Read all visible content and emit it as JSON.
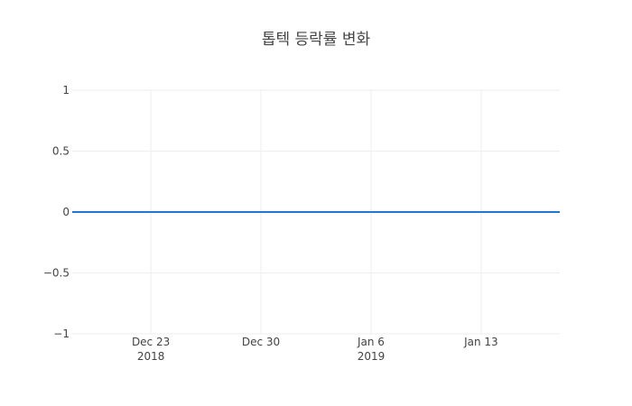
{
  "chart_data": {
    "type": "line",
    "title": "톱텍 등락률 변화",
    "xlabel": "",
    "ylabel": "",
    "x_range": [
      "2018-12-18",
      "2019-01-18"
    ],
    "ylim": [
      -1,
      1
    ],
    "grid": true,
    "legend": "none",
    "series": [
      {
        "color": "#1f77d3",
        "x": [
          "2018-12-18",
          "2019-01-18"
        ],
        "values": [
          0,
          0
        ]
      }
    ],
    "y_ticks": [
      {
        "value": 1,
        "label": "1"
      },
      {
        "value": 0.5,
        "label": "0.5"
      },
      {
        "value": 0,
        "label": "0"
      },
      {
        "value": -0.5,
        "label": "−0.5"
      },
      {
        "value": -1,
        "label": "−1"
      }
    ],
    "x_ticks": [
      {
        "date": "2018-12-23",
        "label": "Dec 23",
        "sublabel": "2018"
      },
      {
        "date": "2018-12-30",
        "label": "Dec 30",
        "sublabel": ""
      },
      {
        "date": "2019-01-06",
        "label": "Jan 6",
        "sublabel": "2019"
      },
      {
        "date": "2019-01-13",
        "label": "Jan 13",
        "sublabel": ""
      }
    ]
  }
}
